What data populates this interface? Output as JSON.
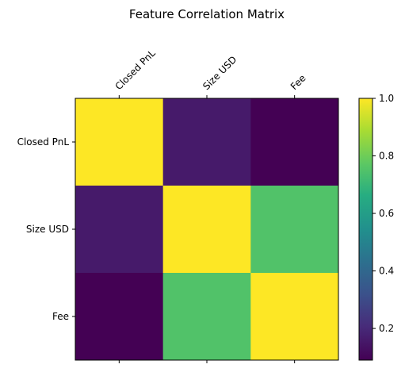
{
  "chart_data": {
    "type": "heatmap",
    "title": "Feature Correlation Matrix",
    "x_categories": [
      "Closed PnL",
      "Size USD",
      "Fee"
    ],
    "y_categories": [
      "Closed PnL",
      "Size USD",
      "Fee"
    ],
    "matrix": [
      [
        1.0,
        0.16,
        0.09
      ],
      [
        0.16,
        1.0,
        0.75
      ],
      [
        0.09,
        0.75,
        1.0
      ]
    ],
    "colormap": "viridis",
    "colorbar": {
      "vmin": 0.09,
      "vmax": 1.0,
      "ticks": [
        0.2,
        0.4,
        0.6,
        0.8,
        1.0
      ],
      "tick_labels": [
        "0.2",
        "0.4",
        "0.6",
        "0.8",
        "1.0"
      ]
    },
    "x_tick_position": "top",
    "x_tick_rotation": 45,
    "grid": false
  }
}
